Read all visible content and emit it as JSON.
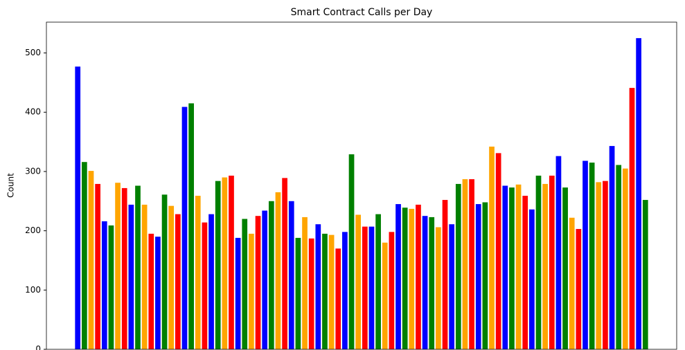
{
  "chart_data": {
    "type": "bar",
    "title": "Smart Contract Calls per Day",
    "ylabel": "Count",
    "categories": [
      null,
      null,
      null,
      null,
      null,
      null,
      null,
      null,
      null,
      null,
      null,
      null,
      null,
      null,
      null,
      null,
      null,
      null,
      null,
      null,
      null,
      null,
      null,
      null,
      null,
      null,
      null,
      null,
      null,
      null,
      null,
      null,
      null,
      null,
      null,
      null,
      null,
      null,
      null,
      null,
      null,
      null,
      null,
      null,
      null,
      null,
      null,
      null,
      null,
      null,
      null,
      null,
      null,
      null,
      null,
      null,
      null,
      null,
      null,
      null,
      null,
      null,
      null,
      null,
      null,
      null,
      null,
      null,
      null,
      null,
      null,
      null,
      null,
      null,
      null,
      null,
      null,
      null,
      null,
      null,
      null,
      null,
      null,
      null,
      null,
      null
    ],
    "values": [
      477,
      316,
      301,
      279,
      216,
      209,
      281,
      272,
      244,
      276,
      244,
      195,
      190,
      261,
      242,
      228,
      409,
      415,
      259,
      214,
      228,
      284,
      290,
      293,
      188,
      220,
      195,
      225,
      234,
      250,
      265,
      289,
      250,
      188,
      223,
      187,
      211,
      195,
      193,
      170,
      198,
      329,
      227,
      207,
      207,
      228,
      180,
      198,
      245,
      239,
      237,
      244,
      225,
      223,
      206,
      252,
      211,
      279,
      287,
      287,
      245,
      248,
      342,
      331,
      276,
      273,
      278,
      259,
      236,
      293,
      279,
      293,
      326,
      273,
      222,
      203,
      318,
      315,
      282,
      284,
      343,
      311,
      305,
      441,
      525,
      252
    ],
    "color_cycle": [
      "#0000ff",
      "#008000",
      "#ffa500",
      "#ff0000"
    ],
    "ylim": [
      0,
      552
    ],
    "yticks": [
      0,
      100,
      200,
      300,
      400,
      500
    ],
    "grid": false
  }
}
